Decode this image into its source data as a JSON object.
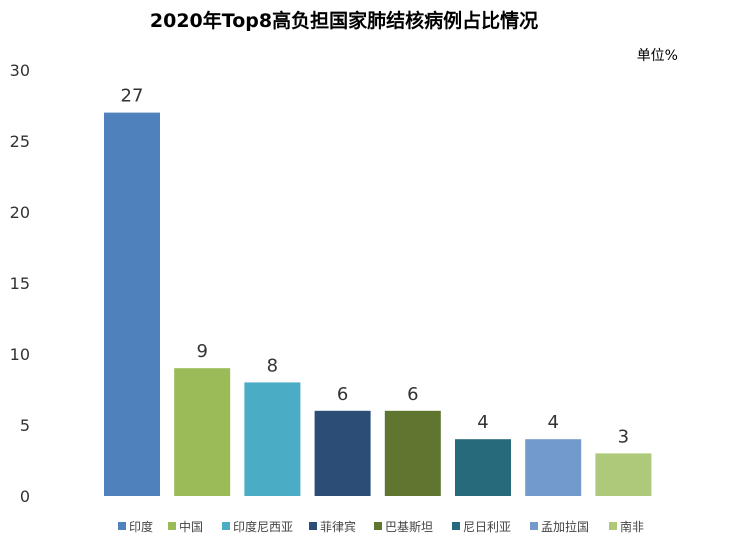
{
  "chart_data": {
    "type": "bar",
    "title": "2020年Top8高负担国家肺结核病例占比情况",
    "unit_label": "单位%",
    "categories": [
      "印度",
      "中国",
      "印度尼西亚",
      "菲律宾",
      "巴基斯坦",
      "尼日利亚",
      "孟加拉国",
      "南非"
    ],
    "values": [
      27,
      9,
      8,
      6,
      6,
      4,
      4,
      3
    ],
    "colors": [
      "#4F81BD",
      "#9BBB59",
      "#4BACC6",
      "#2C4D75",
      "#5F7530",
      "#276A7C",
      "#729ACA",
      "#AFC97A"
    ],
    "ylim": [
      0,
      30
    ],
    "yticks": [
      0,
      5,
      10,
      15,
      20,
      25,
      30
    ],
    "grid": false,
    "legend_position": "bottom"
  }
}
